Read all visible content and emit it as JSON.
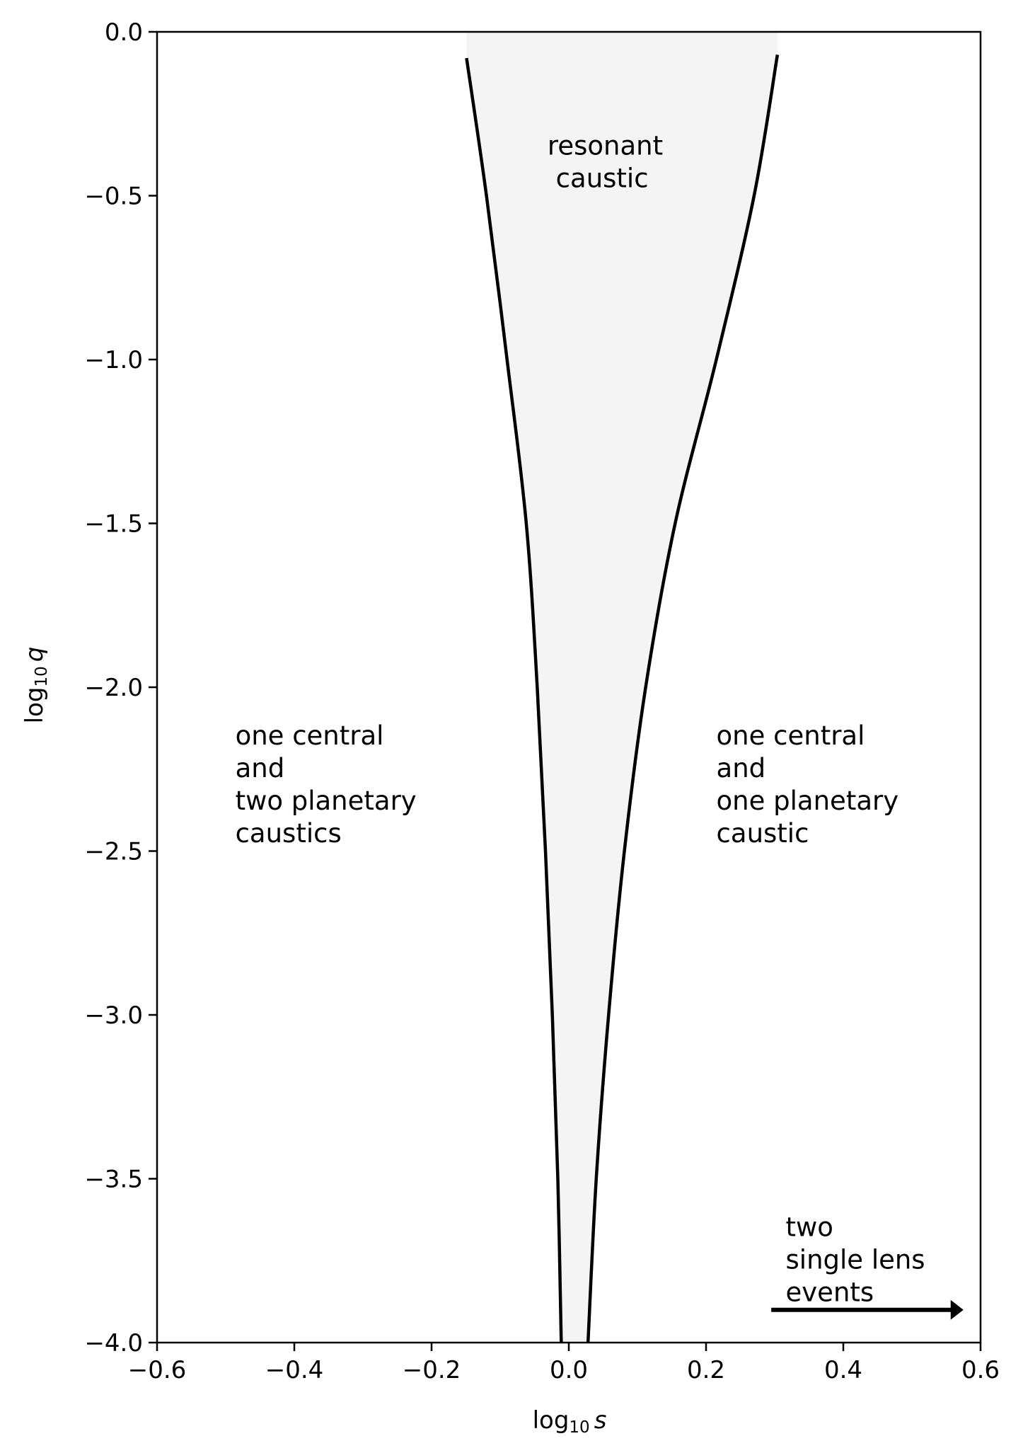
{
  "chart_data": {
    "type": "line",
    "title": "",
    "xlabel_base": "log",
    "xlabel_sub": "10",
    "xlabel_var": "s",
    "ylabel_base": "log",
    "ylabel_sub": "10",
    "ylabel_var": "q",
    "xlim": [
      -0.6,
      0.6
    ],
    "ylim": [
      -4.0,
      0.0
    ],
    "grid": false,
    "x_ticks": [
      -0.6,
      -0.4,
      -0.2,
      0.0,
      0.2,
      0.4,
      0.6
    ],
    "x_tick_labels": [
      "−0.6",
      "−0.4",
      "−0.2",
      "0.0",
      "0.2",
      "0.4",
      "0.6"
    ],
    "y_ticks": [
      0.0,
      -0.5,
      -1.0,
      -1.5,
      -2.0,
      -2.5,
      -3.0,
      -3.5,
      -4.0
    ],
    "y_tick_labels": [
      "0.0",
      "−0.5",
      "−1.0",
      "−1.5",
      "−2.0",
      "−2.5",
      "−3.0",
      "−3.5",
      "−4.0"
    ],
    "shaded_region_color": "#f4f4f4",
    "line_color": "#000000",
    "series": [
      {
        "points": [
          [
            -0.149,
            -0.08
          ],
          [
            -0.12,
            -0.5
          ],
          [
            -0.09,
            -1.0
          ],
          [
            -0.062,
            -1.5
          ],
          [
            -0.046,
            -2.0
          ],
          [
            -0.034,
            -2.5
          ],
          [
            -0.024,
            -3.0
          ],
          [
            -0.016,
            -3.5
          ],
          [
            -0.011,
            -4.0
          ]
        ]
      },
      {
        "points": [
          [
            0.304,
            -0.07
          ],
          [
            0.27,
            -0.5
          ],
          [
            0.215,
            -1.0
          ],
          [
            0.155,
            -1.5
          ],
          [
            0.112,
            -2.0
          ],
          [
            0.081,
            -2.5
          ],
          [
            0.058,
            -3.0
          ],
          [
            0.04,
            -3.5
          ],
          [
            0.028,
            -4.0
          ]
        ]
      }
    ],
    "annotations": [
      {
        "lines": [
          "resonant",
          " caustic"
        ],
        "x": -0.031,
        "y": -0.375
      },
      {
        "lines": [
          "one central",
          "and",
          "two planetary",
          "caustics"
        ],
        "x": -0.486,
        "y": -2.175
      },
      {
        "lines": [
          "one central",
          "and",
          "one planetary",
          "caustic"
        ],
        "x": 0.215,
        "y": -2.175
      },
      {
        "lines": [
          "two",
          "single lens",
          "events"
        ],
        "x": 0.316,
        "y": -3.675
      }
    ],
    "arrow": {
      "from": [
        0.295,
        -3.9
      ],
      "to": [
        0.575,
        -3.9
      ]
    }
  }
}
